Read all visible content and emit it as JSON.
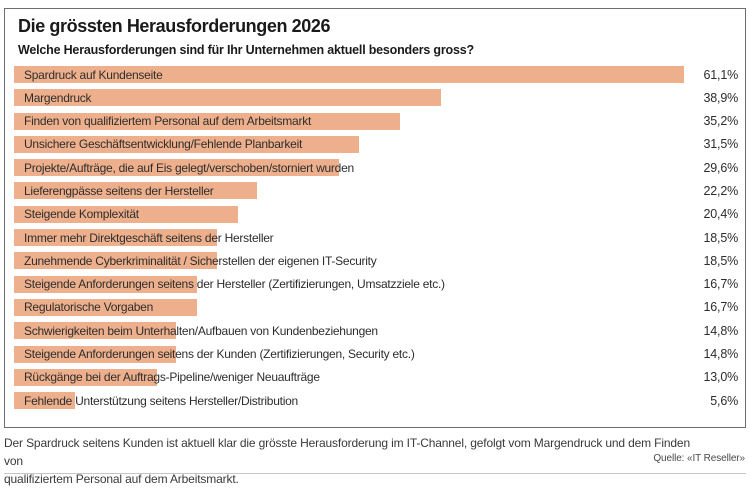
{
  "title": "Die grössten Herausforderungen 2026",
  "subtitle": "Welche Herausforderungen sind für Ihr Unternehmen aktuell besonders gross?",
  "chart_data": {
    "type": "bar",
    "orientation": "horizontal",
    "title": "Die grössten Herausforderungen 2026",
    "xlabel": "",
    "ylabel": "",
    "xlim": [
      0,
      61.1
    ],
    "grid": false,
    "legend": false,
    "bar_color": "#EEB08C",
    "value_suffix": "%",
    "categories": [
      "Spardruck auf Kundenseite",
      "Margendruck",
      "Finden von qualifiziertem Personal auf dem Arbeitsmarkt",
      "Unsichere Geschäftsentwicklung/Fehlende Planbarkeit",
      "Projekte/Aufträge, die auf Eis gelegt/verschoben/storniert wurden",
      "Lieferengpässe seitens der Hersteller",
      "Steigende Komplexität",
      "Immer mehr Direktgeschäft seitens der Hersteller",
      "Zunehmende Cyberkriminalität / Sicherstellen der eigenen IT-Security",
      "Steigende Anforderungen seitens der Hersteller (Zertifizierungen, Umsatzziele etc.)",
      "Regulatorische Vorgaben",
      "Schwierigkeiten beim Unterhalten/Aufbauen von Kundenbeziehungen",
      "Steigende Anforderungen seitens der Kunden (Zertifizierungen, Security etc.)",
      "Rückgänge bei der Auftrags-Pipeline/weniger Neuaufträge",
      "Fehlende Unterstützung seitens Hersteller/Distribution"
    ],
    "values": [
      61.1,
      38.9,
      35.2,
      31.5,
      29.6,
      22.2,
      20.4,
      18.5,
      18.5,
      16.7,
      16.7,
      14.8,
      14.8,
      13.0,
      5.6
    ],
    "value_labels": [
      "61,1%",
      "38,9%",
      "35,2%",
      "31,5%",
      "29,6%",
      "22,2%",
      "20,4%",
      "18,5%",
      "18,5%",
      "16,7%",
      "16,7%",
      "14,8%",
      "14,8%",
      "13,0%",
      "5,6%"
    ]
  },
  "footer": {
    "note_line1": "Der Spardruck seitens Kunden ist aktuell klar die grösste Herausforderung im IT-Channel, gefolgt vom Margendruck und dem Finden von",
    "note_line2": "qualifiziertem Personal auf dem Arbeitsmarkt.",
    "source": "Quelle: «IT Reseller»"
  }
}
